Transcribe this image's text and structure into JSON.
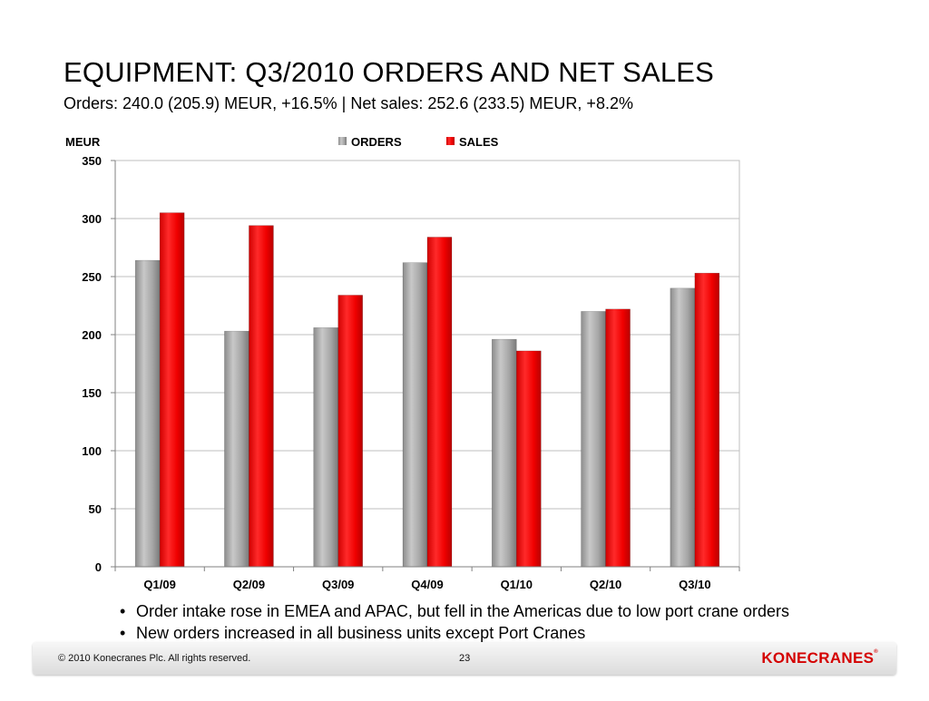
{
  "title": "EQUIPMENT: Q3/2010 ORDERS AND NET SALES",
  "subtitle": "Orders: 240.0 (205.9) MEUR, +16.5% | Net sales: 252.6 (233.5) MEUR, +8.2%",
  "bullets": [
    "Order intake rose in EMEA and APAC, but fell in the Americas due to low port crane orders",
    "New orders increased in all business units except Port Cranes"
  ],
  "footer": {
    "copyright": "© 2010 Konecranes Plc. All rights reserved.",
    "page_number": "23",
    "logo": "KONECRANES"
  },
  "chart_data": {
    "type": "bar",
    "title": "",
    "xlabel": "",
    "ylabel": "MEUR",
    "categories": [
      "Q1/09",
      "Q2/09",
      "Q3/09",
      "Q4/09",
      "Q1/10",
      "Q2/10",
      "Q3/10"
    ],
    "series": [
      {
        "name": "ORDERS",
        "color": "#a6a6a6",
        "values": [
          264,
          203,
          206,
          262,
          196,
          220,
          240
        ]
      },
      {
        "name": "SALES",
        "color": "#ff0000",
        "values": [
          305,
          294,
          234,
          284,
          186,
          222,
          253
        ]
      }
    ],
    "ylim": [
      0,
      350
    ],
    "yticks": [
      0,
      50,
      100,
      150,
      200,
      250,
      300,
      350
    ],
    "grid": true,
    "legend_position": "top"
  }
}
